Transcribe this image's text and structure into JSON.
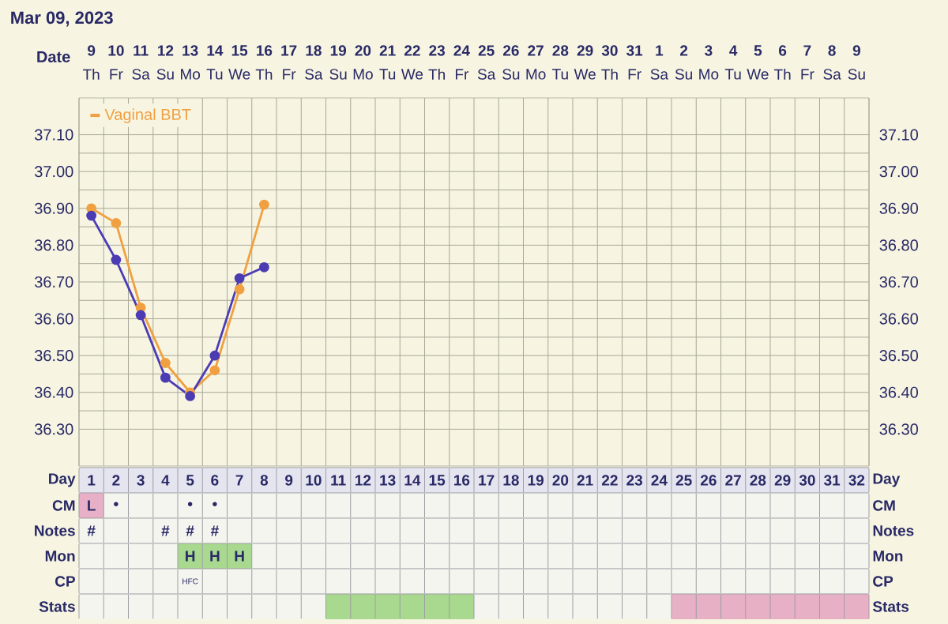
{
  "chart_data": {
    "type": "line",
    "title": "Mar 09, 2023",
    "categories": [
      "1",
      "2",
      "3",
      "4",
      "5",
      "6",
      "7",
      "8",
      "9",
      "10",
      "11",
      "12",
      "13",
      "14",
      "15",
      "16",
      "17",
      "18",
      "19",
      "20",
      "21",
      "22",
      "23",
      "24",
      "25",
      "26",
      "27",
      "28",
      "29",
      "30",
      "31",
      "32"
    ],
    "series": [
      {
        "name": "Vaginal BBT",
        "color": "#f0a040",
        "values": [
          36.9,
          36.86,
          36.63,
          36.48,
          36.4,
          36.46,
          36.68,
          36.91,
          null,
          null,
          null,
          null,
          null,
          null,
          null,
          null,
          null,
          null,
          null,
          null,
          null,
          null,
          null,
          null,
          null,
          null,
          null,
          null,
          null,
          null,
          null,
          null
        ]
      },
      {
        "color": "#4b3cb4",
        "values": [
          36.88,
          36.76,
          36.61,
          36.44,
          36.39,
          36.5,
          36.71,
          36.74,
          null,
          null,
          null,
          null,
          null,
          null,
          null,
          null,
          null,
          null,
          null,
          null,
          null,
          null,
          null,
          null,
          null,
          null,
          null,
          null,
          null,
          null,
          null,
          null
        ]
      }
    ],
    "ylim": [
      36.2,
      37.2
    ],
    "yticks": [
      {
        "value": 36.3,
        "label": "36.30"
      },
      {
        "value": 36.4,
        "label": "36.40"
      },
      {
        "value": 36.5,
        "label": "36.50"
      },
      {
        "value": 36.6,
        "label": "36.60"
      },
      {
        "value": 36.7,
        "label": "36.70"
      },
      {
        "value": 36.8,
        "label": "36.80"
      },
      {
        "value": 36.9,
        "label": "36.90"
      },
      {
        "value": 37.0,
        "label": "37.00"
      },
      {
        "value": 37.1,
        "label": "37.10"
      }
    ],
    "y2lim": [
      36.2,
      37.2
    ],
    "y2ticks": [
      {
        "value": 36.3,
        "label": "36.30"
      },
      {
        "value": 36.4,
        "label": "36.40"
      },
      {
        "value": 36.5,
        "label": "36.50"
      },
      {
        "value": 36.6,
        "label": "36.60"
      },
      {
        "value": 36.7,
        "label": "36.70"
      },
      {
        "value": 36.8,
        "label": "36.80"
      },
      {
        "value": 36.9,
        "label": "36.90"
      },
      {
        "value": 37.0,
        "label": "37.00"
      },
      {
        "value": 37.1,
        "label": "37.10"
      }
    ],
    "grid": true,
    "legend": "top left",
    "marker": "circle",
    "line_style": "solid",
    "annotations": [
      "Date",
      "9",
      "10",
      "11",
      "12",
      "13",
      "14",
      "15",
      "16",
      "17",
      "18",
      "19",
      "20",
      "21",
      "22",
      "23",
      "24",
      "25",
      "26",
      "27",
      "28",
      "29",
      "30",
      "31",
      "1",
      "2",
      "3",
      "4",
      "5",
      "6",
      "7",
      "8",
      "9",
      "Th",
      "Fr",
      "Sa",
      "Su",
      "Mo",
      "Tu",
      "We",
      "Th",
      "Fr",
      "Sa",
      "Su",
      "Mo",
      "Tu",
      "We",
      "Th",
      "Fr",
      "Sa",
      "Su",
      "Mo",
      "Tu",
      "We",
      "Th",
      "Fr",
      "Sa",
      "Su",
      "Mo",
      "Tu",
      "We",
      "Th",
      "Fr",
      "Sa",
      "Su",
      "Day",
      "Day",
      "CM",
      "CM",
      "Notes",
      "Notes",
      "Mon",
      "Mon",
      "CP",
      "CP",
      "Stats",
      "Stats",
      "L",
      "•",
      "•",
      "•",
      "#",
      "#",
      "#",
      "#",
      "H",
      "H",
      "H",
      "HFC"
    ]
  }
}
